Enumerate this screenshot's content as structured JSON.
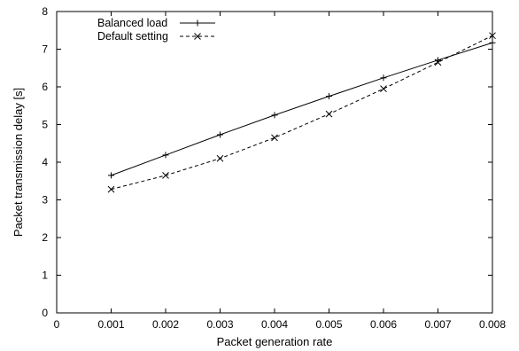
{
  "chart_data": {
    "type": "line",
    "title": "",
    "xlabel": "Packet generation rate",
    "ylabel": "Packet transmission delay [s]",
    "xlim": [
      0,
      0.008
    ],
    "ylim": [
      0,
      8
    ],
    "x_ticks": [
      "0",
      "0.001",
      "0.002",
      "0.003",
      "0.004",
      "0.005",
      "0.006",
      "0.007",
      "0.008"
    ],
    "y_ticks": [
      "0",
      "1",
      "2",
      "3",
      "4",
      "5",
      "6",
      "7",
      "8"
    ],
    "grid": false,
    "legend_position": "top-left",
    "series": [
      {
        "name": "Balanced load",
        "line_style": "solid",
        "marker": "plus",
        "x": [
          0.001,
          0.002,
          0.003,
          0.004,
          0.005,
          0.006,
          0.007,
          0.008
        ],
        "y": [
          3.65,
          4.19,
          4.73,
          5.25,
          5.75,
          6.24,
          6.71,
          7.17
        ]
      },
      {
        "name": "Default setting",
        "line_style": "dashed",
        "marker": "x",
        "x": [
          0.001,
          0.002,
          0.003,
          0.004,
          0.005,
          0.006,
          0.007,
          0.008
        ],
        "y": [
          3.28,
          3.65,
          4.1,
          4.65,
          5.28,
          5.95,
          6.65,
          7.36
        ]
      }
    ]
  }
}
